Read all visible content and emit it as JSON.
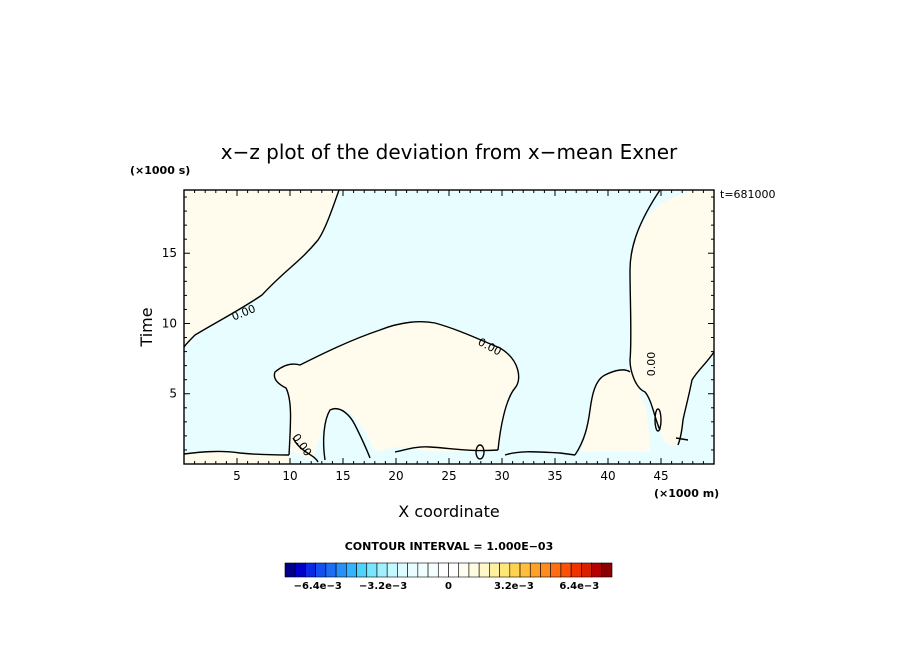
{
  "chart_data": {
    "type": "contour",
    "title": "x−z plot of the deviation from x−mean Exner",
    "xlabel": "X coordinate",
    "ylabel": "Time",
    "x_scale_note": "(×1000 m)",
    "y_scale_note": "(×1000 s)",
    "time_stamp": "t=681000",
    "x_ticks": [
      "5",
      "10",
      "15",
      "20",
      "25",
      "30",
      "35",
      "40",
      "45"
    ],
    "y_ticks": [
      "5",
      "10",
      "15"
    ],
    "xlim": [
      0,
      50
    ],
    "ylim": [
      0,
      19.5
    ],
    "contour_labels": [
      "0.00",
      "0.00",
      "0.00",
      "0.00",
      "0.00"
    ],
    "colorbar": {
      "title": "CONTOUR INTERVAL = 1.000E−03",
      "tick_labels": [
        "−6.4e−3",
        "−3.2e−3",
        "0",
        "3.2e−3",
        "6.4e−3"
      ],
      "tick_values": [
        -0.0064,
        -0.0032,
        0,
        0.0032,
        0.0064
      ],
      "range": [
        -0.008,
        0.008
      ],
      "levels": 32,
      "colors": [
        "#00008b",
        "#0000c8",
        "#0a28e6",
        "#1450f0",
        "#1e6ef5",
        "#2890fa",
        "#32b4ff",
        "#50d2ff",
        "#78e6ff",
        "#a0f0ff",
        "#c3f8ff",
        "#dcfcff",
        "#e8fdff",
        "#f0feff",
        "#f6ffff",
        "#ffffff",
        "#ffffff",
        "#fffef0",
        "#fffce0",
        "#fff8c8",
        "#fff0a0",
        "#ffe678",
        "#ffd250",
        "#ffbe3c",
        "#ffa028",
        "#ff8c1e",
        "#ff6e14",
        "#ff500a",
        "#f03200",
        "#dc1e00",
        "#b40000",
        "#8b0000"
      ]
    },
    "region_colors": {
      "negative": "#e8fdff",
      "positive": "#fffcee"
    }
  }
}
